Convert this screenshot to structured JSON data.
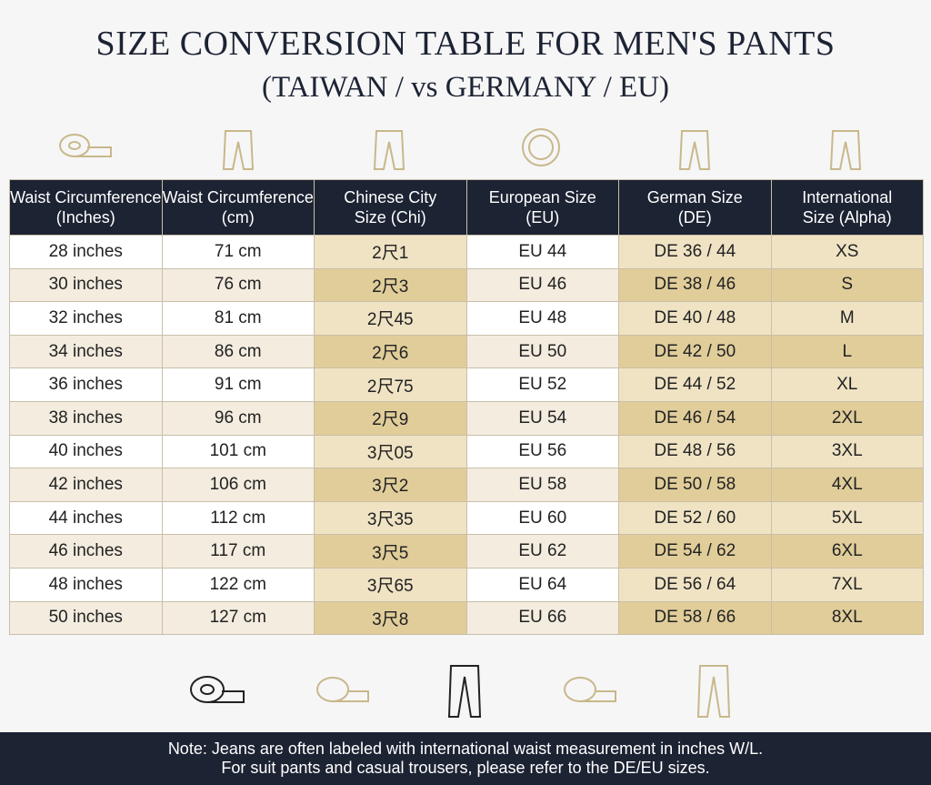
{
  "header": {
    "title": "SIZE CONVERSION TABLE FOR MEN'S PANTS",
    "subtitle": "(TAIWAN / vs GERMANY / EU)"
  },
  "table": {
    "headers": [
      [
        "Waist Circumference",
        "(Inches)"
      ],
      [
        "Waist Circumference",
        "(cm)"
      ],
      [
        "Chinese City",
        "Size (Chi)"
      ],
      [
        "European Size",
        "(EU)"
      ],
      [
        "German Size",
        "(DE)"
      ],
      [
        "International",
        "Size (Alpha)"
      ]
    ],
    "rows": [
      [
        "28 inches",
        "71 cm",
        "2尺1",
        "EU 44",
        "DE 36 / 44",
        "XS"
      ],
      [
        "30 inches",
        "76 cm",
        "2尺3",
        "EU 46",
        "DE 38 / 46",
        "S"
      ],
      [
        "32 inches",
        "81 cm",
        "2尺45",
        "EU 48",
        "DE 40 / 48",
        "M"
      ],
      [
        "34 inches",
        "86 cm",
        "2尺6",
        "EU 50",
        "DE 42 / 50",
        "L"
      ],
      [
        "36 inches",
        "91 cm",
        "2尺75",
        "EU 52",
        "DE 44 / 52",
        "XL"
      ],
      [
        "38 inches",
        "96 cm",
        "2尺9",
        "EU 54",
        "DE 46 / 54",
        "2XL"
      ],
      [
        "40 inches",
        "101 cm",
        "3尺05",
        "EU 56",
        "DE 48 / 56",
        "3XL"
      ],
      [
        "42 inches",
        "106 cm",
        "3尺2",
        "EU 58",
        "DE 50 / 58",
        "4XL"
      ],
      [
        "44 inches",
        "112 cm",
        "3尺35",
        "EU 60",
        "DE 52 / 60",
        "5XL"
      ],
      [
        "46 inches",
        "117 cm",
        "3尺5",
        "EU 62",
        "DE 54 / 62",
        "6XL"
      ],
      [
        "48 inches",
        "122 cm",
        "3尺65",
        "EU 64",
        "DE 56 / 64",
        "7XL"
      ],
      [
        "50 inches",
        "127 cm",
        "3尺8",
        "EU 66",
        "DE 58 / 66",
        "8XL"
      ]
    ]
  },
  "note": [
    "Note: Jeans are often labeled with international waist measurement in inches W/L.",
    "For suit pants and casual trousers, please refer to the DE/EU sizes."
  ]
}
